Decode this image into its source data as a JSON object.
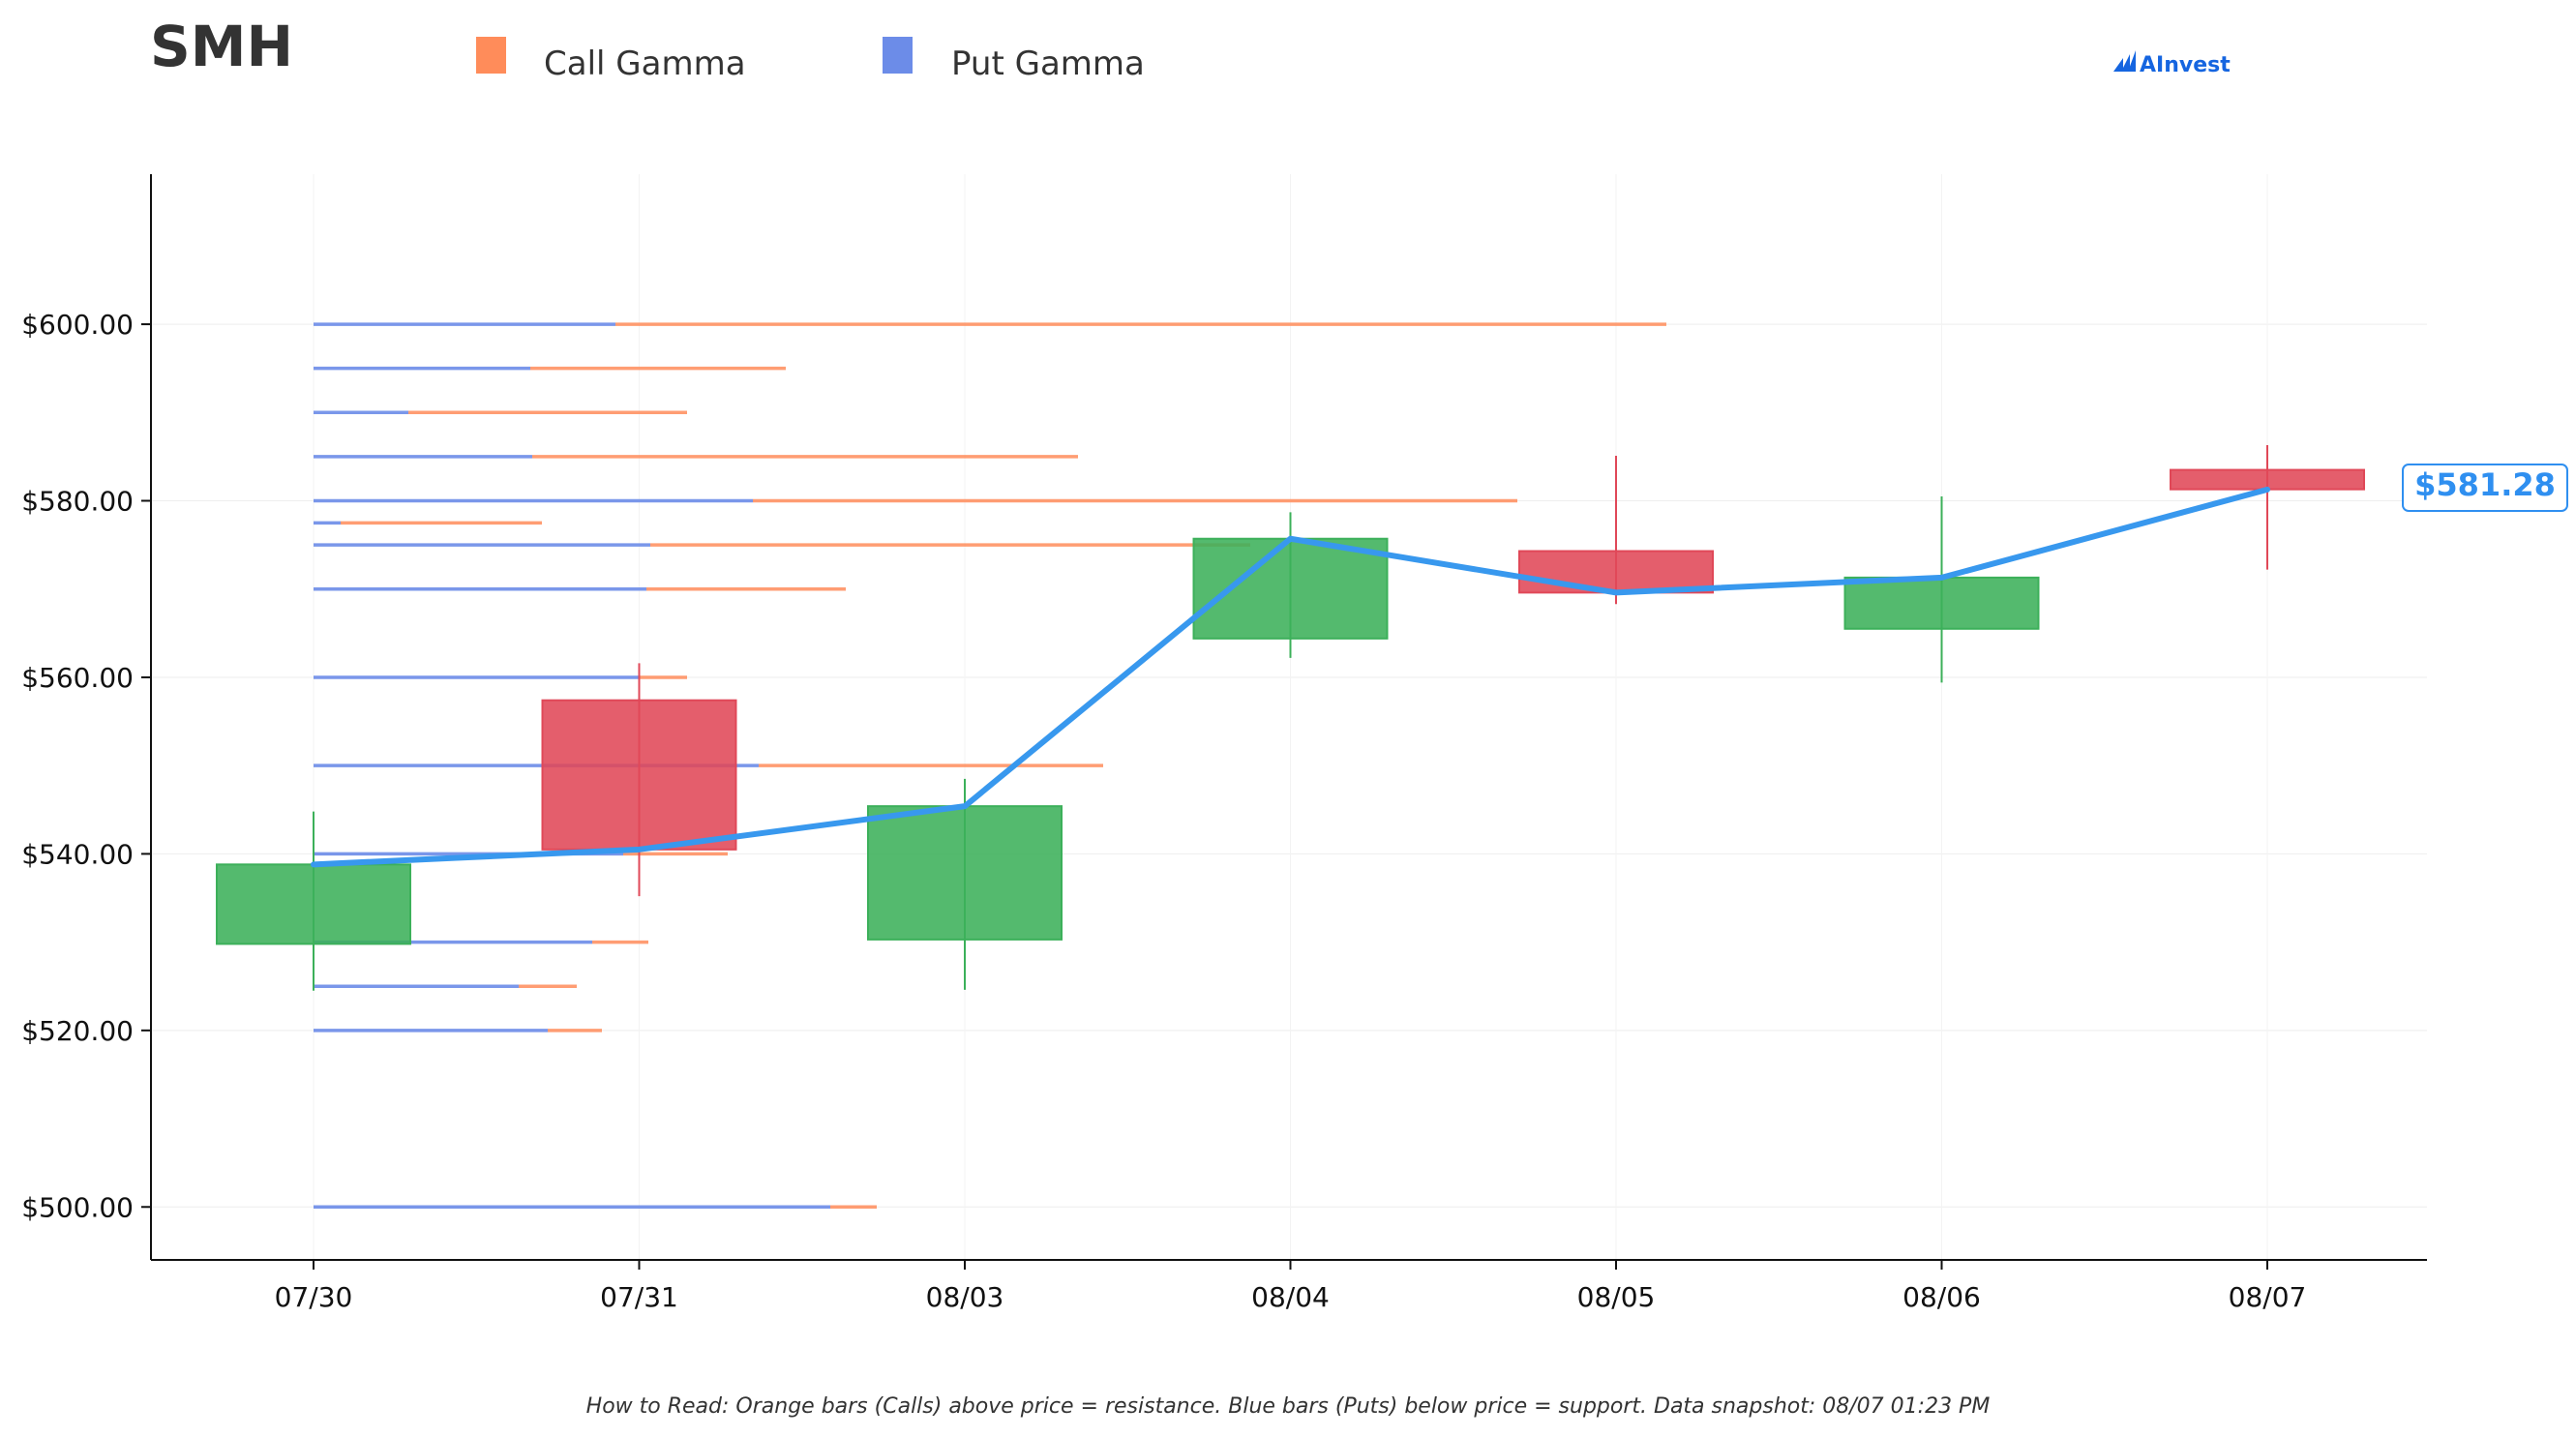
{
  "ticker": "SMH",
  "brand": "AInvest",
  "legend": [
    {
      "label": "Call Gamma",
      "color": "#ff8c5a"
    },
    {
      "label": "Put Gamma",
      "color": "#6c8ce8"
    }
  ],
  "footnote": "How to Read: Orange bars (Calls) above price = resistance. Blue bars (Puts) below price = support. Data snapshot: 08/07 01:23 PM",
  "last_price_label": "$581.28",
  "colors": {
    "call": "#ff8c5a",
    "put": "#6c8ce8",
    "up_candle": "#3cb05a",
    "down_candle": "#e04858",
    "price_line": "#3898ee"
  },
  "chart_data": {
    "type": "candlestick",
    "categories": [
      "07/30",
      "07/31",
      "08/03",
      "08/04",
      "08/05",
      "08/06",
      "08/07"
    ],
    "ylim": [
      494,
      617
    ],
    "yticks": [
      500,
      520,
      540,
      560,
      580,
      600
    ],
    "ytick_labels": [
      "$500.00",
      "$520.00",
      "$540.00",
      "$560.00",
      "$580.00",
      "$600.00"
    ],
    "grid": true,
    "candles": [
      {
        "date": "07/30",
        "open": 529.8,
        "high": 544.8,
        "low": 524.5,
        "close": 538.8
      },
      {
        "date": "07/31",
        "open": 557.4,
        "high": 561.6,
        "low": 535.2,
        "close": 540.5
      },
      {
        "date": "08/03",
        "open": 530.3,
        "high": 548.5,
        "low": 524.6,
        "close": 545.4
      },
      {
        "date": "08/04",
        "open": 564.4,
        "high": 578.7,
        "low": 562.2,
        "close": 575.7
      },
      {
        "date": "08/05",
        "open": 574.3,
        "high": 585.1,
        "low": 568.3,
        "close": 569.6
      },
      {
        "date": "08/06",
        "open": 565.5,
        "high": 580.5,
        "low": 559.4,
        "close": 571.3
      },
      {
        "date": "08/07",
        "open": 583.5,
        "high": 586.3,
        "low": 572.2,
        "close": 581.3
      }
    ],
    "price_line": {
      "x": [
        "07/30",
        "07/31",
        "08/03",
        "08/04",
        "08/05",
        "08/06",
        "08/07"
      ],
      "y": [
        538.8,
        540.5,
        545.4,
        575.7,
        569.6,
        571.3,
        581.28
      ]
    },
    "gamma_levels": [
      {
        "strike": 600,
        "put": 1.56,
        "call": 5.43
      },
      {
        "strike": 595,
        "put": 1.12,
        "call": 1.32
      },
      {
        "strike": 590,
        "put": 0.49,
        "call": 1.44
      },
      {
        "strike": 585,
        "put": 1.13,
        "call": 2.82
      },
      {
        "strike": 580,
        "put": 2.27,
        "call": 3.95
      },
      {
        "strike": 577.5,
        "put": 0.14,
        "call": 1.04
      },
      {
        "strike": 575,
        "put": 1.74,
        "call": 3.1
      },
      {
        "strike": 570,
        "put": 1.72,
        "call": 1.03
      },
      {
        "strike": 560,
        "put": 1.68,
        "call": 0.25
      },
      {
        "strike": 550,
        "put": 2.3,
        "call": 1.78
      },
      {
        "strike": 540,
        "put": 1.6,
        "call": 0.54
      },
      {
        "strike": 530,
        "put": 1.44,
        "call": 0.29
      },
      {
        "strike": 525,
        "put": 1.06,
        "call": 0.3
      },
      {
        "strike": 520,
        "put": 1.21,
        "call": 0.28
      },
      {
        "strike": 500,
        "put": 2.67,
        "call": 0.24
      }
    ]
  }
}
